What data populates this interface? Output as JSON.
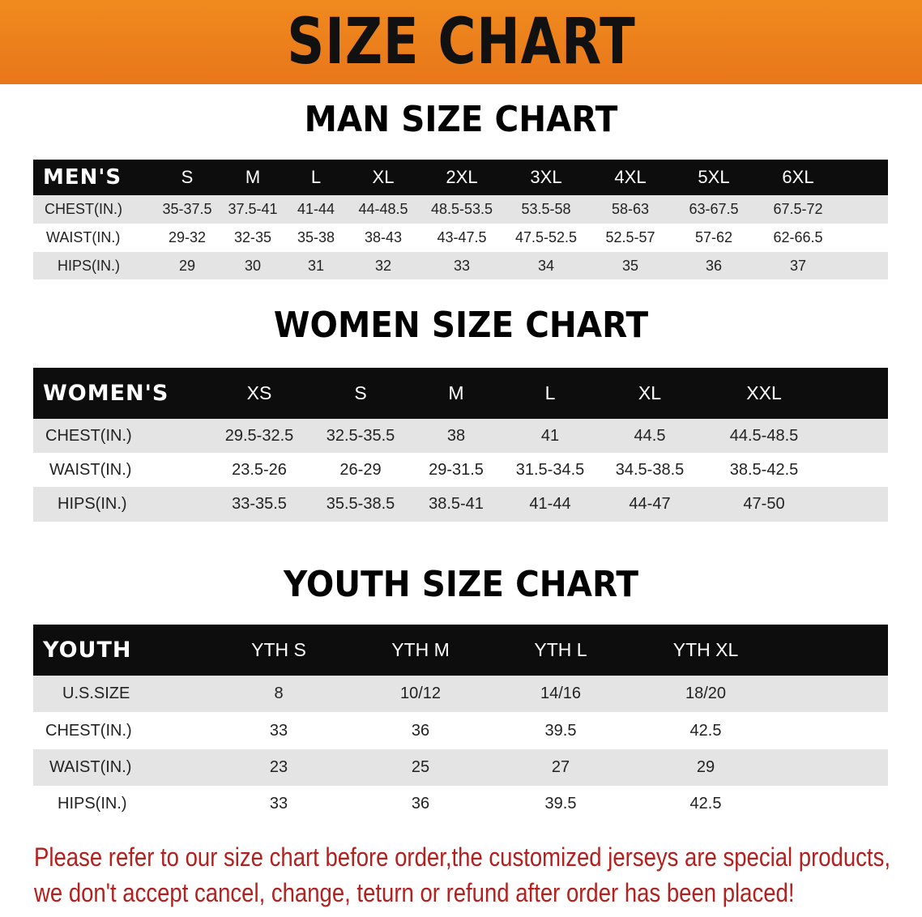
{
  "banner": "SIZE CHART",
  "men": {
    "title": "MAN SIZE CHART",
    "header": [
      "MEN'S",
      "S",
      "M",
      "L",
      "XL",
      "2XL",
      "3XL",
      "4XL",
      "5XL",
      "6XL"
    ],
    "rows": [
      [
        "CHEST(IN.)",
        "35-37.5",
        "37.5-41",
        "41-44",
        "44-48.5",
        "48.5-53.5",
        "53.5-58",
        "58-63",
        "63-67.5",
        "67.5-72"
      ],
      [
        "WAIST(IN.)",
        "29-32",
        "32-35",
        "35-38",
        "38-43",
        "43-47.5",
        "47.5-52.5",
        "52.5-57",
        "57-62",
        "62-66.5"
      ],
      [
        "HIPS(IN.)",
        "29",
        "30",
        "31",
        "32",
        "33",
        "34",
        "35",
        "36",
        "37"
      ]
    ]
  },
  "women": {
    "title": "WOMEN SIZE CHART",
    "header": [
      "WOMEN'S",
      "XS",
      "S",
      "M",
      "L",
      "XL",
      "XXL"
    ],
    "rows": [
      [
        "CHEST(IN.)",
        "29.5-32.5",
        "32.5-35.5",
        "38",
        "41",
        "44.5",
        "44.5-48.5"
      ],
      [
        "WAIST(IN.)",
        "23.5-26",
        "26-29",
        "29-31.5",
        "31.5-34.5",
        "34.5-38.5",
        "38.5-42.5"
      ],
      [
        "HIPS(IN.)",
        "33-35.5",
        "35.5-38.5",
        "38.5-41",
        "41-44",
        "44-47",
        "47-50"
      ]
    ]
  },
  "youth": {
    "title": "YOUTH SIZE CHART",
    "header": [
      "YOUTH",
      "YTH S",
      "YTH M",
      "YTH L",
      "YTH XL"
    ],
    "rows": [
      [
        "U.S.SIZE",
        "8",
        "10/12",
        "14/16",
        "18/20"
      ],
      [
        "CHEST(IN.)",
        "33",
        "36",
        "39.5",
        "42.5"
      ],
      [
        "WAIST(IN.)",
        "23",
        "25",
        "27",
        "29"
      ],
      [
        "HIPS(IN.)",
        "33",
        "36",
        "39.5",
        "42.5"
      ]
    ]
  },
  "note": {
    "line1": "Please refer to our size chart before order,the customized jerseys are special products,",
    "line2": "we don't accept cancel, change, teturn or refund after order has been placed!"
  },
  "colors": {
    "banner": "#ec801c",
    "header_row": "#0d0d0d",
    "stripe": "#e4e4e4",
    "note_text": "#b3201e"
  }
}
